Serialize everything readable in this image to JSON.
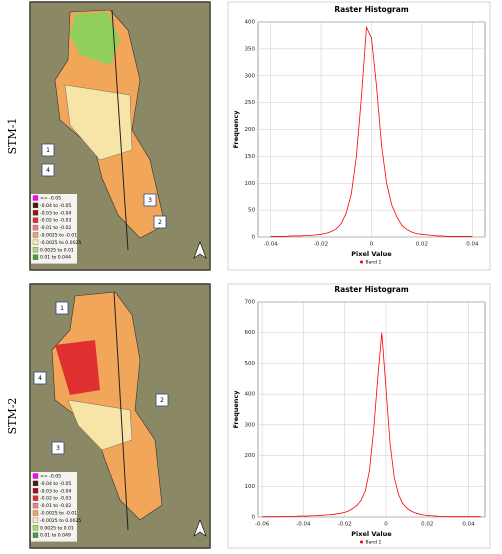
{
  "maps": [
    {
      "label": "STM-1",
      "callouts": [
        "1",
        "4",
        "3",
        "2"
      ],
      "legend": [
        "<= -0.05",
        "-0.04 to -0.05",
        "-0.03 to -0.04",
        "-0.02 to -0.03",
        "-0.01 to -0.02",
        "-0.0025 to -0.01",
        "-0.0025 to 0.0025",
        "0.0025 to 0.01",
        "0.01 to 0.044"
      ],
      "legend_colors": [
        "#ff00ff",
        "#4a1a0a",
        "#a01010",
        "#e03030",
        "#f08080",
        "#f4a460",
        "#fde8b0",
        "#a8d86e",
        "#3aa63a"
      ]
    },
    {
      "label": "STM-2",
      "callouts": [
        "1",
        "4",
        "2",
        "3"
      ],
      "legend": [
        "<= -0.05",
        "-0.04 to -0.05",
        "-0.03 to -0.04",
        "-0.02 to -0.03",
        "-0.01 to -0.02",
        "-0.0025 to -0.01",
        "-0.0025 to 0.0025",
        "0.0025 to 0.01",
        "0.01 to 0.049"
      ],
      "legend_colors": [
        "#ff00ff",
        "#4a1a0a",
        "#a01010",
        "#e03030",
        "#f08080",
        "#f4a460",
        "#fde8b0",
        "#a8d86e",
        "#3aa63a"
      ]
    }
  ],
  "chart_data": [
    {
      "type": "line",
      "title": "Raster Histogram",
      "x_label": "Pixel Value",
      "y_label": "Frequency",
      "grid": true,
      "x": [
        -0.04,
        -0.038,
        -0.036,
        -0.034,
        -0.032,
        -0.03,
        -0.028,
        -0.026,
        -0.024,
        -0.022,
        -0.02,
        -0.018,
        -0.016,
        -0.014,
        -0.012,
        -0.01,
        -0.008,
        -0.006,
        -0.004,
        -0.002,
        0,
        0.002,
        0.004,
        0.006,
        0.008,
        0.01,
        0.012,
        0.014,
        0.016,
        0.018,
        0.02,
        0.022,
        0.024,
        0.026,
        0.028,
        0.03,
        0.032,
        0.034,
        0.036,
        0.038,
        0.04
      ],
      "series": [
        {
          "name": "Band 1",
          "color": "#ff0000",
          "values": [
            1,
            1,
            1,
            1,
            2,
            2,
            2,
            3,
            3,
            4,
            5,
            7,
            10,
            15,
            25,
            45,
            80,
            150,
            260,
            390,
            370,
            280,
            170,
            100,
            60,
            38,
            22,
            14,
            9,
            6,
            5,
            4,
            3,
            2,
            2,
            1,
            1,
            1,
            1,
            1,
            1
          ]
        }
      ],
      "xlim": [
        -0.045,
        0.045
      ],
      "xticks": [
        -0.04,
        -0.02,
        0,
        0.02,
        0.04
      ],
      "ylim": [
        0,
        400
      ],
      "yticks": [
        0,
        50,
        100,
        150,
        200,
        250,
        300,
        350,
        400
      ]
    },
    {
      "type": "line",
      "title": "Raster Histogram",
      "x_label": "Pixel Value",
      "y_label": "Frequency",
      "grid": true,
      "x": [
        -0.06,
        -0.058,
        -0.056,
        -0.054,
        -0.052,
        -0.05,
        -0.048,
        -0.046,
        -0.044,
        -0.042,
        -0.04,
        -0.038,
        -0.036,
        -0.034,
        -0.032,
        -0.03,
        -0.028,
        -0.026,
        -0.024,
        -0.022,
        -0.02,
        -0.018,
        -0.016,
        -0.014,
        -0.012,
        -0.01,
        -0.008,
        -0.006,
        -0.004,
        -0.002,
        0,
        0.002,
        0.004,
        0.006,
        0.008,
        0.01,
        0.012,
        0.014,
        0.016,
        0.018,
        0.02,
        0.022,
        0.024,
        0.026,
        0.028,
        0.03,
        0.032,
        0.034,
        0.036,
        0.038,
        0.04,
        0.042,
        0.044,
        0.046
      ],
      "series": [
        {
          "name": "Band 1",
          "color": "#ff0000",
          "values": [
            1,
            1,
            1,
            1,
            1,
            2,
            2,
            2,
            2,
            3,
            3,
            3,
            4,
            4,
            5,
            6,
            7,
            8,
            10,
            12,
            15,
            20,
            28,
            38,
            55,
            85,
            150,
            280,
            450,
            600,
            420,
            240,
            130,
            75,
            45,
            30,
            20,
            14,
            10,
            7,
            5,
            4,
            3,
            2,
            2,
            1,
            1,
            1,
            1,
            1,
            1,
            1,
            1,
            1
          ]
        }
      ],
      "xlim": [
        -0.062,
        0.048
      ],
      "xticks": [
        -0.06,
        -0.04,
        -0.02,
        0,
        0.02,
        0.04
      ],
      "ylim": [
        0,
        700
      ],
      "yticks": [
        0,
        100,
        200,
        300,
        400,
        500,
        600,
        700
      ]
    }
  ]
}
